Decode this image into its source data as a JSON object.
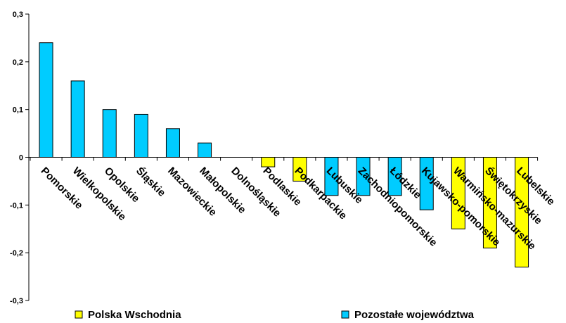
{
  "chart_data": {
    "type": "bar",
    "categories": [
      "Pomorskie",
      "Wielkopolskie",
      "Opolskie",
      "Śląskie",
      "Mazowieckie",
      "Małopolskie",
      "Dolnośląskie",
      "Podlaskie",
      "Podkarpackie",
      "Lubuskie",
      "Zachodniopomorskie",
      "Łódzkie",
      "Kujawsko-pomorskie",
      "Warmińsko-mazurskie",
      "Świętokrzyskie",
      "Lubelskie"
    ],
    "values": [
      0.24,
      0.16,
      0.1,
      0.09,
      0.06,
      0.03,
      0.0,
      -0.02,
      -0.05,
      -0.08,
      -0.08,
      -0.08,
      -0.11,
      -0.15,
      -0.19,
      -0.23
    ],
    "groups": [
      "Pozostałe województwa",
      "Pozostałe województwa",
      "Pozostałe województwa",
      "Pozostałe województwa",
      "Pozostałe województwa",
      "Pozostałe województwa",
      "Pozostałe województwa",
      "Polska Wschodnia",
      "Polska Wschodnia",
      "Pozostałe województwa",
      "Pozostałe województwa",
      "Pozostałe województwa",
      "Pozostałe województwa",
      "Polska Wschodnia",
      "Polska Wschodnia",
      "Polska Wschodnia"
    ],
    "ylim": [
      -0.3,
      0.3
    ],
    "yticks": [
      "0,3",
      "0,2",
      "0,1",
      "0",
      "-0,1",
      "-0,2",
      "-0,3"
    ],
    "ytick_values": [
      0.3,
      0.2,
      0.1,
      0,
      -0.1,
      -0.2,
      -0.3
    ],
    "legend": [
      {
        "name": "Polska Wschodnia",
        "color": "#ffff00"
      },
      {
        "name": "Pozostałe województwa",
        "color": "#00ccff"
      }
    ],
    "legend_position": "bottom",
    "grid": false
  }
}
